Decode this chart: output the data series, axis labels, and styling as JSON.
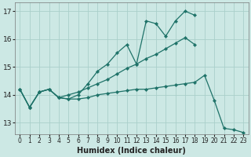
{
  "xlabel": "Humidex (Indice chaleur)",
  "xlim": [
    -0.5,
    23.5
  ],
  "ylim": [
    12.6,
    17.3
  ],
  "yticks": [
    13,
    14,
    15,
    16,
    17
  ],
  "xticks": [
    0,
    1,
    2,
    3,
    4,
    5,
    6,
    7,
    8,
    9,
    10,
    11,
    12,
    13,
    14,
    15,
    16,
    17,
    18,
    19,
    20,
    21,
    22,
    23
  ],
  "bg_color": "#cce8e4",
  "grid_color": "#aacfca",
  "line_color": "#1e7268",
  "line1_y": [
    14.2,
    13.55,
    14.1,
    14.2,
    13.9,
    13.85,
    14.0,
    14.4,
    14.85,
    15.1,
    15.5,
    15.8,
    15.1,
    16.65,
    16.55,
    16.1,
    16.65,
    17.0,
    16.85,
    null,
    null,
    null,
    null,
    null
  ],
  "line2_y": [
    14.2,
    13.55,
    14.1,
    14.2,
    13.9,
    14.0,
    14.1,
    14.25,
    14.4,
    14.55,
    14.75,
    14.95,
    15.1,
    15.3,
    15.45,
    15.65,
    15.85,
    16.05,
    15.8,
    null,
    null,
    null,
    null,
    null
  ],
  "line3_y": [
    14.2,
    13.55,
    14.1,
    14.2,
    13.9,
    13.85,
    13.85,
    13.9,
    14.0,
    14.05,
    14.1,
    14.15,
    14.2,
    14.2,
    14.25,
    14.3,
    14.35,
    14.4,
    14.45,
    14.7,
    13.8,
    12.8,
    12.75,
    12.65
  ],
  "xtick_fontsize": 5.5,
  "ytick_fontsize": 6.5,
  "xlabel_fontsize": 7
}
